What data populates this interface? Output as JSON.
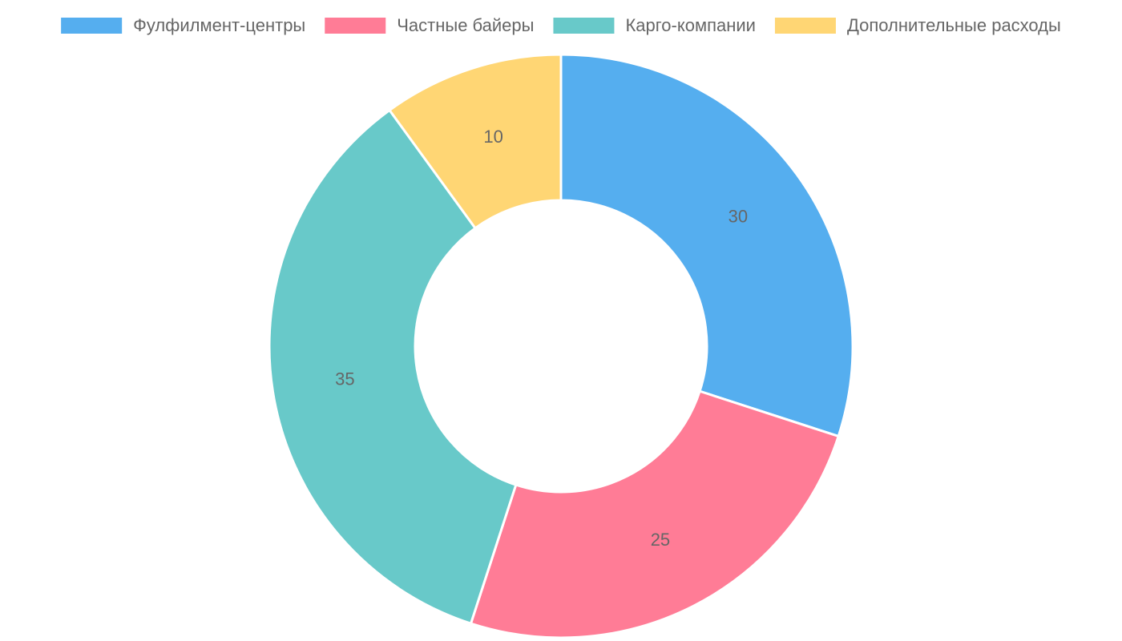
{
  "chart_data": {
    "type": "doughnut",
    "categories": [
      "Фулфилмент-центры",
      "Частные байеры",
      "Карго-компании",
      "Дополнительные расходы"
    ],
    "values": [
      30,
      25,
      35,
      10
    ],
    "colors": [
      "#55aeef",
      "#ff7c96",
      "#68c9c9",
      "#ffd674"
    ],
    "legend": "top"
  }
}
